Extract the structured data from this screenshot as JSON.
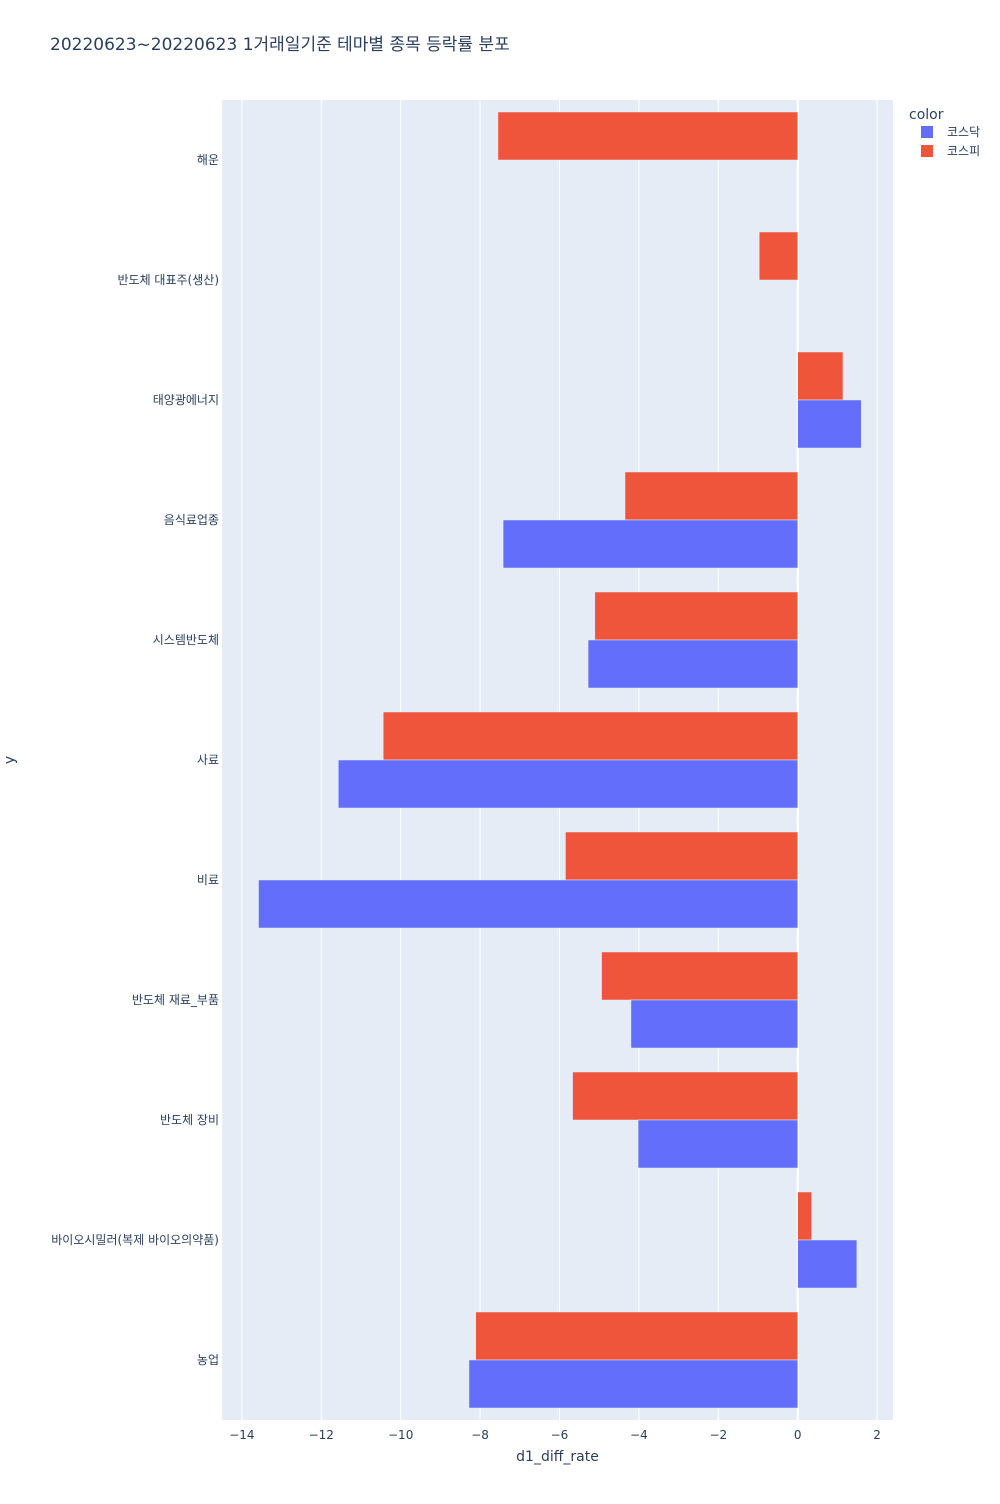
{
  "chart_data": {
    "type": "bar",
    "orientation": "horizontal",
    "barmode": "group",
    "title": "20220623~20220623 1거래일기준 테마별 종목 등락률 분포",
    "xlabel": "d1_diff_rate",
    "ylabel": "y",
    "xlim": [
      -14.5,
      2.4
    ],
    "xticks": [
      -14,
      -12,
      -10,
      -8,
      -6,
      -4,
      -2,
      0,
      2
    ],
    "xtick_labels": [
      "−14",
      "−12",
      "−10",
      "−8",
      "−6",
      "−4",
      "−2",
      "0",
      "2"
    ],
    "grid": true,
    "legend_title": "color",
    "legend_position": "top-right",
    "categories": [
      "해운",
      "반도체 대표주(생산)",
      "태양광에너지",
      "음식료업종",
      "시스템반도체",
      "사료",
      "비료",
      "반도체 재료_부품",
      "반도체 장비",
      "바이오시밀러(복제 바이오의약품)",
      "농업"
    ],
    "series": [
      {
        "name": "코스닥",
        "color": "#636efa",
        "values": [
          null,
          null,
          1.6,
          -7.42,
          -5.28,
          -11.57,
          -13.58,
          -4.2,
          -4.02,
          1.49,
          -8.28
        ]
      },
      {
        "name": "코스피",
        "color": "#ef553b",
        "values": [
          -7.55,
          -0.97,
          1.14,
          -4.35,
          -5.11,
          -10.44,
          -5.85,
          -4.94,
          -5.67,
          0.35,
          -8.11
        ]
      }
    ]
  }
}
